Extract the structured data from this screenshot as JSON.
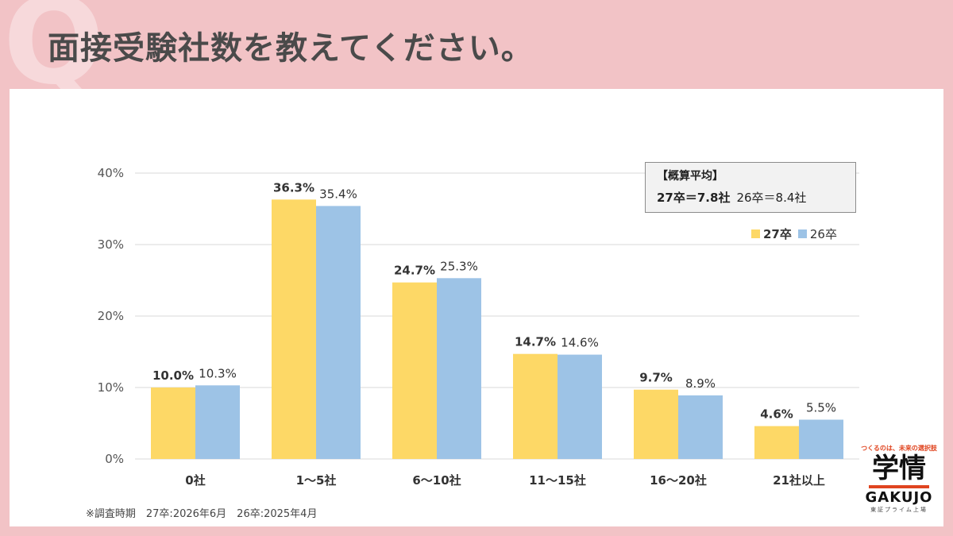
{
  "header": {
    "deco_letter": "Q",
    "title": "面接受験社数を教えてください。"
  },
  "summary": {
    "title": "【概算平均】",
    "line_27": "27卒＝7.8社",
    "line_26": "26卒＝8.4社"
  },
  "footnote": "※調査時期　27卒:2026年6月　26卒:2025年4月",
  "logo": {
    "tagline": "つくるのは、未来の選択肢",
    "mark": "学情",
    "word": "GAKUJO",
    "sub": "東証プライム上場"
  },
  "colors": {
    "series_27": "#fdd866",
    "series_26": "#9dc3e6",
    "grid": "#d9d9d9",
    "title_text": "#4a4a4a"
  },
  "chart_data": {
    "type": "bar",
    "categories": [
      "0社",
      "1～5社",
      "6～10社",
      "11～15社",
      "16～20社",
      "21社以上"
    ],
    "series": [
      {
        "name": "27卒",
        "values": [
          10.0,
          36.3,
          24.7,
          14.7,
          9.7,
          4.6
        ],
        "labels": [
          "10.0%",
          "36.3%",
          "24.7%",
          "14.7%",
          "9.7%",
          "4.6%"
        ]
      },
      {
        "name": "26卒",
        "values": [
          10.3,
          35.4,
          25.3,
          14.6,
          8.9,
          5.5
        ],
        "labels": [
          "10.3%",
          "35.4%",
          "25.3%",
          "14.6%",
          "8.9%",
          "5.5%"
        ]
      }
    ],
    "ylim": [
      0,
      40
    ],
    "yticks": [
      0,
      10,
      20,
      30,
      40
    ],
    "ytick_labels": [
      "0%",
      "10%",
      "20%",
      "30%",
      "40%"
    ],
    "grid": true,
    "legend_position": "top-right"
  }
}
